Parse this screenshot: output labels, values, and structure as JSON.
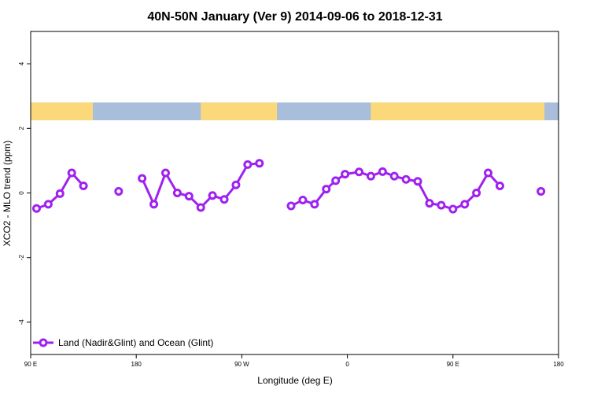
{
  "chart_data": {
    "type": "line",
    "title": "40N-50N January (Ver 9)   2014-09-06 to 2018-12-31",
    "xlabel": "Longitude (deg E)",
    "ylabel": "XCO2 - MLO trend (ppm)",
    "xlim": [
      90,
      540
    ],
    "ylim": [
      -5,
      5
    ],
    "x_ticks": [
      {
        "value": 90,
        "label": "90 E"
      },
      {
        "value": 180,
        "label": "180"
      },
      {
        "value": 270,
        "label": "90 W"
      },
      {
        "value": 360,
        "label": "0"
      },
      {
        "value": 450,
        "label": "90 E"
      },
      {
        "value": 540,
        "label": "180"
      }
    ],
    "y_ticks": [
      {
        "value": -4,
        "label": "-4"
      },
      {
        "value": -2,
        "label": "-2"
      },
      {
        "value": 0,
        "label": "0"
      },
      {
        "value": 2,
        "label": "2"
      },
      {
        "value": 4,
        "label": "4"
      }
    ],
    "grid": false,
    "legend_position": "bottom-left",
    "map_strip": {
      "y_range": [
        2.25,
        2.8
      ],
      "ocean_color": "#a9bedb",
      "land_color": "#fbd97a",
      "land_x_ranges": [
        [
          90,
          143
        ],
        [
          235,
          300
        ],
        [
          380,
          528
        ]
      ]
    },
    "series": [
      {
        "name": "Land (Nadir&Glint) and Ocean (Glint)",
        "color": "#a020f0",
        "segments": [
          [
            [
              95,
              -0.48
            ],
            [
              105,
              -0.35
            ],
            [
              115,
              -0.02
            ],
            [
              125,
              0.62
            ],
            [
              135,
              0.22
            ]
          ],
          [
            [
              165,
              0.05
            ]
          ],
          [
            [
              185,
              0.45
            ],
            [
              195,
              -0.35
            ],
            [
              205,
              0.62
            ],
            [
              215,
              0.0
            ],
            [
              225,
              -0.1
            ],
            [
              235,
              -0.45
            ],
            [
              245,
              -0.08
            ],
            [
              255,
              -0.2
            ],
            [
              265,
              0.25
            ],
            [
              275,
              0.88
            ],
            [
              285,
              0.92
            ]
          ],
          [
            [
              312,
              -0.4
            ],
            [
              322,
              -0.22
            ],
            [
              332,
              -0.35
            ],
            [
              342,
              0.12
            ],
            [
              350,
              0.38
            ],
            [
              358,
              0.58
            ],
            [
              370,
              0.65
            ],
            [
              380,
              0.52
            ],
            [
              390,
              0.66
            ],
            [
              400,
              0.52
            ],
            [
              410,
              0.42
            ],
            [
              420,
              0.36
            ],
            [
              430,
              -0.32
            ],
            [
              440,
              -0.38
            ],
            [
              450,
              -0.5
            ],
            [
              460,
              -0.35
            ],
            [
              470,
              0.0
            ],
            [
              480,
              0.62
            ],
            [
              490,
              0.22
            ]
          ],
          [
            [
              525,
              0.05
            ]
          ]
        ]
      }
    ]
  }
}
